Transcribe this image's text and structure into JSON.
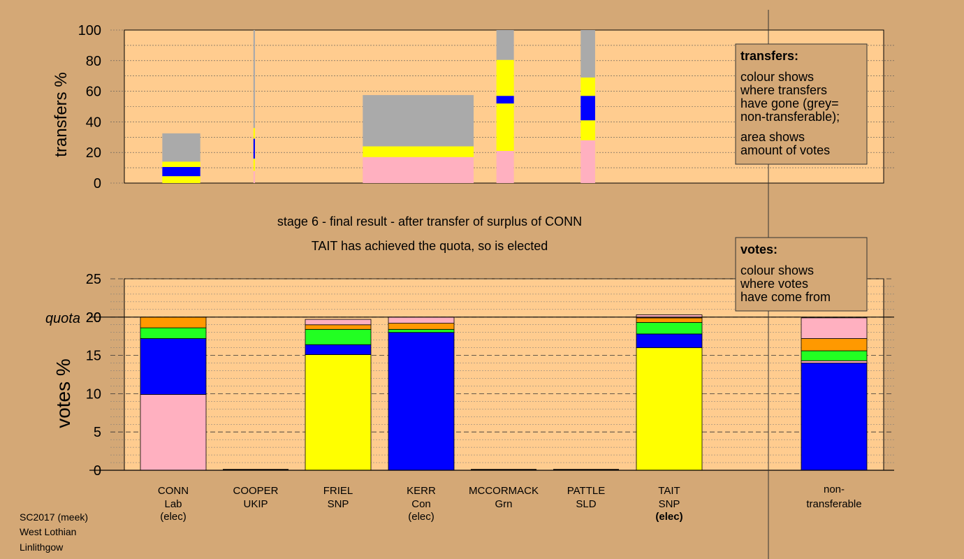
{
  "colors": {
    "background": "#d4a876",
    "plot_bg": "#ffcc8f",
    "pink": "#ffb0c0",
    "blue": "#0000ff",
    "yellow": "#ffff00",
    "green": "#22ff22",
    "orange": "#ff9900",
    "grey": "#aaaaaa"
  },
  "transfers_chart": {
    "ylabel": "transfers %",
    "ylim": [
      0,
      100
    ],
    "yticks": [
      "0",
      "20",
      "40",
      "60",
      "80",
      "100"
    ],
    "legend": {
      "title": "transfers:",
      "line1": [
        "colour shows",
        "where transfers",
        "have gone (grey=",
        "non-transferable);"
      ],
      "line2": [
        "area shows",
        "amount of votes"
      ]
    }
  },
  "captions": {
    "stage": "stage 6 - final result - after transfer of surplus of CONN",
    "result": "TAIT has achieved the quota, so is elected"
  },
  "votes_chart": {
    "ylabel": "votes %",
    "ylim": [
      0,
      25
    ],
    "yticks": [
      "0",
      "5",
      "10",
      "15",
      "20",
      "25"
    ],
    "quota_label": "quota",
    "quota_value": 20,
    "legend": {
      "title": "votes:",
      "lines": [
        "colour shows",
        "where votes",
        "have come from"
      ]
    }
  },
  "candidates": [
    {
      "name": "CONN",
      "party": "Lab",
      "status": "(elec)",
      "bold_status": false
    },
    {
      "name": "COOPER",
      "party": "UKIP",
      "status": "",
      "bold_status": false
    },
    {
      "name": "FRIEL",
      "party": "SNP",
      "status": "",
      "bold_status": false
    },
    {
      "name": "KERR",
      "party": "Con",
      "status": "(elec)",
      "bold_status": false
    },
    {
      "name": "MCCORMACK",
      "party": "Grn",
      "status": "",
      "bold_status": false
    },
    {
      "name": "PATTLE",
      "party": "SLD",
      "status": "",
      "bold_status": false
    },
    {
      "name": "TAIT",
      "party": "SNP",
      "status": "(elec)",
      "bold_status": true
    }
  ],
  "nontransferable_label": [
    "non-",
    "transferable"
  ],
  "footer": [
    "SC2017 (meek)",
    "West Lothian",
    "Linlithgow"
  ],
  "chart_data": [
    {
      "type": "bar",
      "title": "",
      "xlabel": "",
      "ylabel": "transfers %",
      "ylim": [
        0,
        100
      ],
      "legend_placement": "right",
      "note": "stacked bars; bar width proportional to amount of votes transferred",
      "bars": [
        {
          "x_from": 0.05,
          "x_to": 0.1,
          "segments": [
            {
              "color": "yellow",
              "from": 0,
              "to": 4.5
            },
            {
              "color": "blue",
              "from": 4.5,
              "to": 10.5
            },
            {
              "color": "yellow",
              "from": 10.5,
              "to": 14
            },
            {
              "color": "grey",
              "from": 14,
              "to": 32.5
            }
          ]
        },
        {
          "x_from": 0.17,
          "x_to": 0.172,
          "segments": [
            {
              "color": "pink",
              "from": 0,
              "to": 8
            },
            {
              "color": "yellow",
              "from": 8,
              "to": 16
            },
            {
              "color": "blue",
              "from": 16,
              "to": 29
            },
            {
              "color": "yellow",
              "from": 29,
              "to": 36
            },
            {
              "color": "grey",
              "from": 36,
              "to": 100
            }
          ]
        },
        {
          "x_from": 0.314,
          "x_to": 0.46,
          "segments": [
            {
              "color": "pink",
              "from": 0,
              "to": 17
            },
            {
              "color": "yellow",
              "from": 17,
              "to": 24
            },
            {
              "color": "grey",
              "from": 24,
              "to": 57.5
            }
          ]
        },
        {
          "x_from": 0.49,
          "x_to": 0.513,
          "segments": [
            {
              "color": "pink",
              "from": 0,
              "to": 21
            },
            {
              "color": "yellow",
              "from": 21,
              "to": 52
            },
            {
              "color": "blue",
              "from": 52,
              "to": 57
            },
            {
              "color": "yellow",
              "from": 57,
              "to": 80.5
            },
            {
              "color": "grey",
              "from": 80.5,
              "to": 100
            }
          ]
        },
        {
          "x_from": 0.601,
          "x_to": 0.62,
          "segments": [
            {
              "color": "pink",
              "from": 0,
              "to": 28
            },
            {
              "color": "yellow",
              "from": 28,
              "to": 41
            },
            {
              "color": "blue",
              "from": 41,
              "to": 57
            },
            {
              "color": "yellow",
              "from": 57,
              "to": 69
            },
            {
              "color": "grey",
              "from": 69,
              "to": 100
            }
          ]
        }
      ]
    },
    {
      "type": "bar",
      "title": "",
      "xlabel": "",
      "ylabel": "votes %",
      "ylim": [
        0,
        25
      ],
      "quota": 20,
      "legend_placement": "right",
      "categories": [
        "CONN",
        "COOPER",
        "FRIEL",
        "KERR",
        "MCCORMACK",
        "PATTLE",
        "TAIT",
        "non-transferable"
      ],
      "stacks": [
        [
          {
            "color": "pink",
            "from": 0,
            "to": 9.9
          },
          {
            "color": "blue",
            "from": 9.9,
            "to": 17.2
          },
          {
            "color": "green",
            "from": 17.2,
            "to": 18.6
          },
          {
            "color": "orange",
            "from": 18.6,
            "to": 20.0
          }
        ],
        [],
        [
          {
            "color": "yellow",
            "from": 0,
            "to": 15.1
          },
          {
            "color": "blue",
            "from": 15.1,
            "to": 16.4
          },
          {
            "color": "green",
            "from": 16.4,
            "to": 18.4
          },
          {
            "color": "orange",
            "from": 18.4,
            "to": 19.0
          },
          {
            "color": "pink",
            "from": 19.0,
            "to": 19.7
          }
        ],
        [
          {
            "color": "blue",
            "from": 0,
            "to": 18.0
          },
          {
            "color": "green",
            "from": 18.0,
            "to": 18.4
          },
          {
            "color": "orange",
            "from": 18.4,
            "to": 19.2
          },
          {
            "color": "pink",
            "from": 19.2,
            "to": 20.0
          }
        ],
        [],
        [],
        [
          {
            "color": "yellow",
            "from": 0,
            "to": 16.0
          },
          {
            "color": "blue",
            "from": 16.0,
            "to": 17.8
          },
          {
            "color": "green",
            "from": 17.8,
            "to": 19.3
          },
          {
            "color": "orange",
            "from": 19.3,
            "to": 19.9
          },
          {
            "color": "pink",
            "from": 19.9,
            "to": 20.3
          }
        ],
        [
          {
            "color": "blue",
            "from": 0,
            "to": 14.0
          },
          {
            "color": "pink",
            "from": 14.0,
            "to": 14.3
          },
          {
            "color": "green",
            "from": 14.3,
            "to": 15.6
          },
          {
            "color": "orange",
            "from": 15.6,
            "to": 17.2
          },
          {
            "color": "pink",
            "from": 17.2,
            "to": 19.9
          }
        ]
      ]
    }
  ]
}
